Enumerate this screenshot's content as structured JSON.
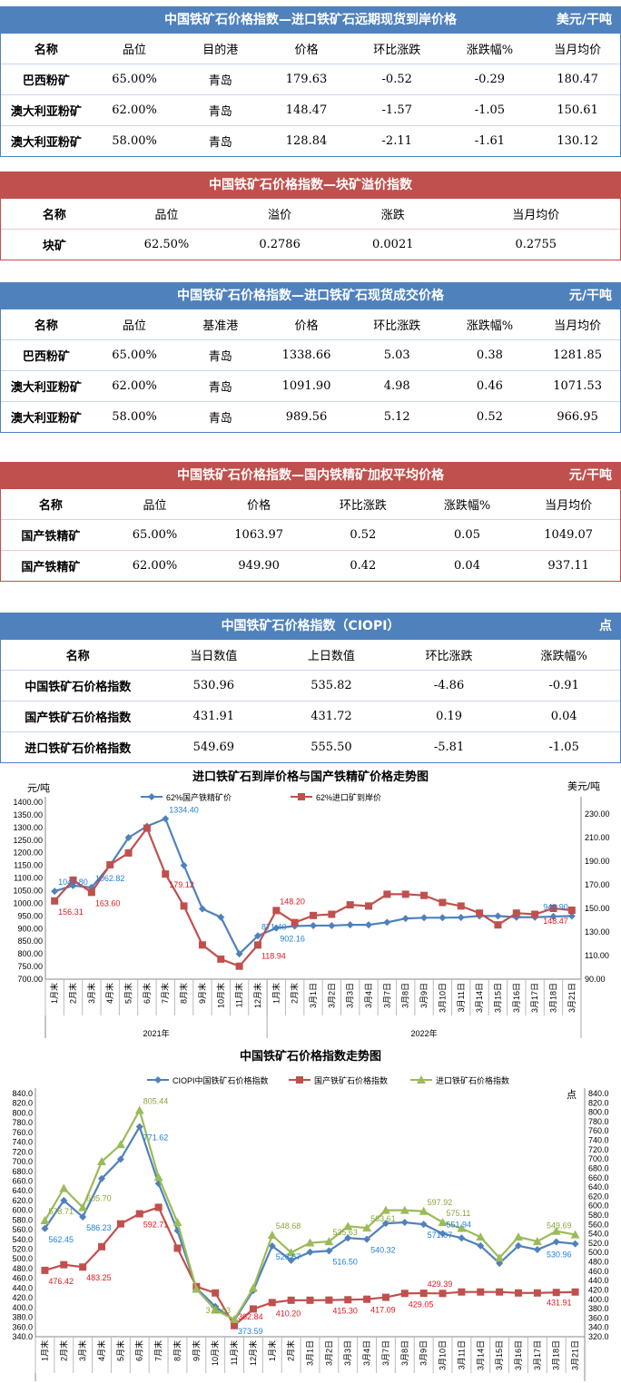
{
  "tables": [
    {
      "title": "中国铁矿石价格指数—进口铁矿石远期现货到岸价格",
      "unit": "美元/干吨",
      "color": "#4f81bd",
      "headers": [
        "名称",
        "品位",
        "目的港",
        "价格",
        "环比涨跌",
        "涨跌幅%",
        "当月均价"
      ],
      "rows": [
        [
          "巴西粉矿",
          "65.00%",
          "青岛",
          "179.63",
          "-0.52",
          "-0.29",
          "180.47"
        ],
        [
          "澳大利亚粉矿",
          "62.00%",
          "青岛",
          "148.47",
          "-1.57",
          "-1.05",
          "150.61"
        ],
        [
          "澳大利亚粉矿",
          "58.00%",
          "青岛",
          "128.84",
          "-2.11",
          "-1.61",
          "130.12"
        ]
      ]
    },
    {
      "title": "中国铁矿石价格指数—块矿溢价指数",
      "unit": "",
      "color": "#c0504d",
      "headers": [
        "名称",
        "品位",
        "溢价",
        "涨跌",
        "当月均价"
      ],
      "rows": [
        [
          "块矿",
          "62.50%",
          "0.2786",
          "0.0021",
          "0.2755"
        ]
      ]
    },
    {
      "title": "中国铁矿石价格指数—进口铁矿石现货成交价格",
      "unit": "元/干吨",
      "color": "#4f81bd",
      "headers": [
        "名称",
        "品位",
        "基准港",
        "价格",
        "环比涨跌",
        "涨跌幅%",
        "当月均价"
      ],
      "rows": [
        [
          "巴西粉矿",
          "65.00%",
          "青岛",
          "1338.66",
          "5.03",
          "0.38",
          "1281.85"
        ],
        [
          "澳大利亚粉矿",
          "62.00%",
          "青岛",
          "1091.90",
          "4.98",
          "0.46",
          "1071.53"
        ],
        [
          "澳大利亚粉矿",
          "58.00%",
          "青岛",
          "989.56",
          "5.12",
          "0.52",
          "966.95"
        ]
      ]
    },
    {
      "title": "中国铁矿石价格指数—国内铁精矿加权平均价格",
      "unit": "元/干吨",
      "color": "#c0504d",
      "headers": [
        "名称",
        "品位",
        "价格",
        "环比涨跌",
        "涨跌幅%",
        "当月均价"
      ],
      "rows": [
        [
          "国产铁精矿",
          "65.00%",
          "1063.97",
          "0.52",
          "0.05",
          "1049.07"
        ],
        [
          "国产铁精矿",
          "62.00%",
          "949.90",
          "0.42",
          "0.04",
          "937.11"
        ]
      ]
    },
    {
      "title": "中国铁矿石价格指数（CIOPI）",
      "unit": "点",
      "color": "#4f81bd",
      "headers": [
        "名称",
        "当日数值",
        "上日数值",
        "环比涨跌",
        "涨跌幅%"
      ],
      "rows": [
        [
          "中国铁矿石价格指数",
          "530.96",
          "535.82",
          "-4.86",
          "-0.91"
        ],
        [
          "国产铁矿石价格指数",
          "431.91",
          "431.72",
          "0.19",
          "0.04"
        ],
        [
          "进口铁矿石价格指数",
          "549.69",
          "555.50",
          "-5.81",
          "-1.05"
        ]
      ]
    }
  ],
  "chart_data": [
    {
      "type": "line",
      "title": "进口铁矿石到岸价格与国产铁精矿价格走势图",
      "ylabel": "元/吨",
      "y2label": "美元/吨",
      "ylim": [
        700,
        1400
      ],
      "y2lim": [
        90,
        240
      ],
      "yticks_step": 50,
      "y2ticks": [
        90,
        110,
        130,
        150,
        170,
        190,
        210,
        230
      ],
      "categories": [
        "1月末",
        "2月末",
        "3月末",
        "4月末",
        "5月末",
        "6月末",
        "7月末",
        "8月末",
        "9月末",
        "10月末",
        "11月末",
        "12月末",
        "1月末",
        "2月末",
        "3月1日",
        "3月2日",
        "3月3日",
        "3月4日",
        "3月7日",
        "3月8日",
        "3月9日",
        "3月10日",
        "3月11日",
        "3月14日",
        "3月15日",
        "3月16日",
        "3月17日",
        "3月18日",
        "3月21日"
      ],
      "groups": [
        {
          "label": "2021年",
          "count": 12
        },
        {
          "label": "2022年",
          "count": 17
        }
      ],
      "series": [
        {
          "name": "62%国产铁精矿价",
          "axis": "left",
          "color": "#4f81bd",
          "label_color": "#1f7fd8",
          "marker": "diamond",
          "values": [
            1047.8,
            1070,
            1062.82,
            1150,
            1260,
            1305,
            1334.4,
            1150,
            978,
            945,
            800,
            871.4,
            902.16,
            910,
            912,
            912,
            915,
            915,
            925,
            940,
            943,
            943,
            944,
            950,
            950,
            945,
            945,
            948,
            949.9
          ],
          "labels": [
            [
              "0",
              "1047.80"
            ],
            [
              "2",
              "1062.82"
            ],
            [
              "6",
              "1334.40"
            ],
            [
              "11",
              "871.40"
            ],
            [
              "12",
              "902.16"
            ],
            [
              "28",
              "949.90"
            ]
          ]
        },
        {
          "name": "62%进口矿到岸价",
          "axis": "right",
          "color": "#c0504d",
          "label_color": "#e0191f",
          "marker": "square",
          "values": [
            156.31,
            174,
            163.6,
            187,
            197,
            218,
            179.12,
            152,
            119,
            107,
            101,
            118.94,
            148.2,
            138,
            144,
            145,
            153,
            152,
            162,
            162,
            161,
            155,
            152,
            146,
            136,
            146,
            145,
            150,
            148.47
          ],
          "labels": [
            [
              "0",
              "156.31"
            ],
            [
              "2",
              "163.60"
            ],
            [
              "6",
              "179.12"
            ],
            [
              "11",
              "118.94"
            ],
            [
              "12",
              "148.20"
            ],
            [
              "28",
              "148.47"
            ]
          ]
        }
      ]
    },
    {
      "type": "line",
      "title": "中国铁矿石价格指数走势图",
      "ylabel": "",
      "y2label": "点",
      "ylim": [
        340,
        840
      ],
      "y2lim": [
        320,
        840
      ],
      "yticks_step": 20,
      "y2ticks_step": 20,
      "categories": [
        "1月末",
        "2月末",
        "3月末",
        "4月末",
        "5月末",
        "6月末",
        "7月末",
        "8月末",
        "9月末",
        "10月末",
        "11月末",
        "12月末",
        "1月末",
        "2月末",
        "3月1日",
        "3月2日",
        "3月3日",
        "3月4日",
        "3月7日",
        "3月8日",
        "3月9日",
        "3月10日",
        "3月11日",
        "3月14日",
        "3月15日",
        "3月16日",
        "3月17日",
        "3月18日",
        "3月21日"
      ],
      "series": [
        {
          "name": "CIOPI中国铁矿石价格指数",
          "axis": "left",
          "color": "#4f81bd",
          "label_color": "#1f7fd8",
          "marker": "diamond",
          "values": [
            562.45,
            620,
            586.23,
            665,
            705,
            771.62,
            655,
            558,
            440,
            402,
            373.59,
            435,
            526.67,
            497,
            514,
            516.5,
            543,
            540.32,
            573,
            575,
            571.07,
            551.94,
            543,
            527,
            491,
            527,
            519,
            535,
            530.96
          ],
          "labels": [
            [
              "0",
              "562.45"
            ],
            [
              "2",
              "586.23"
            ],
            [
              "5",
              "771.62"
            ],
            [
              "10",
              "373.59"
            ],
            [
              "12",
              "526.67"
            ],
            [
              "15",
              "516.50"
            ],
            [
              "17",
              "540.32"
            ],
            [
              "20",
              "571.07"
            ],
            [
              "21",
              "551.94"
            ],
            [
              "28",
              "530.96"
            ]
          ]
        },
        {
          "name": "国产铁矿石价格指数",
          "axis": "left",
          "color": "#c0504d",
          "label_color": "#e0191f",
          "marker": "square",
          "values": [
            476.42,
            488,
            483.25,
            525,
            572,
            592.71,
            606,
            522,
            443,
            430,
            362.84,
            397,
            410.2,
            415,
            415,
            415.3,
            416,
            417.09,
            421,
            429.05,
            429.39,
            429,
            432,
            432,
            432,
            430,
            430,
            431,
            431.91
          ],
          "labels": [
            [
              "0",
              "476.42"
            ],
            [
              "2",
              "483.25"
            ],
            [
              "5",
              "592.71"
            ],
            [
              "10",
              "362.84"
            ],
            [
              "12",
              "410.20"
            ],
            [
              "15",
              "415.30"
            ],
            [
              "17",
              "417.09"
            ],
            [
              "19",
              "429.05"
            ],
            [
              "20",
              "429.39"
            ],
            [
              "28",
              "431.91"
            ]
          ]
        },
        {
          "name": "进口铁矿石价格指数",
          "axis": "left",
          "color": "#9bbb59",
          "label_color": "#8aa63c",
          "marker": "triangle",
          "values": [
            578.71,
            645,
            605.7,
            700,
            735,
            805.44,
            668,
            575,
            438,
            395,
            375.63,
            440,
            548.68,
            513,
            533,
            535.63,
            567,
            563.61,
            600,
            600,
            597.92,
            575.11,
            563,
            545,
            502,
            545,
            536,
            557,
            549.69
          ],
          "labels": [
            [
              "0",
              "578.71"
            ],
            [
              "2",
              "605.70"
            ],
            [
              "5",
              "805.44"
            ],
            [
              "10",
              "375.63"
            ],
            [
              "12",
              "548.68"
            ],
            [
              "15",
              "535.63"
            ],
            [
              "17",
              "563.61"
            ],
            [
              "20",
              "597.92"
            ],
            [
              "21",
              "575.11"
            ],
            [
              "28",
              "549.69"
            ]
          ]
        }
      ]
    }
  ]
}
